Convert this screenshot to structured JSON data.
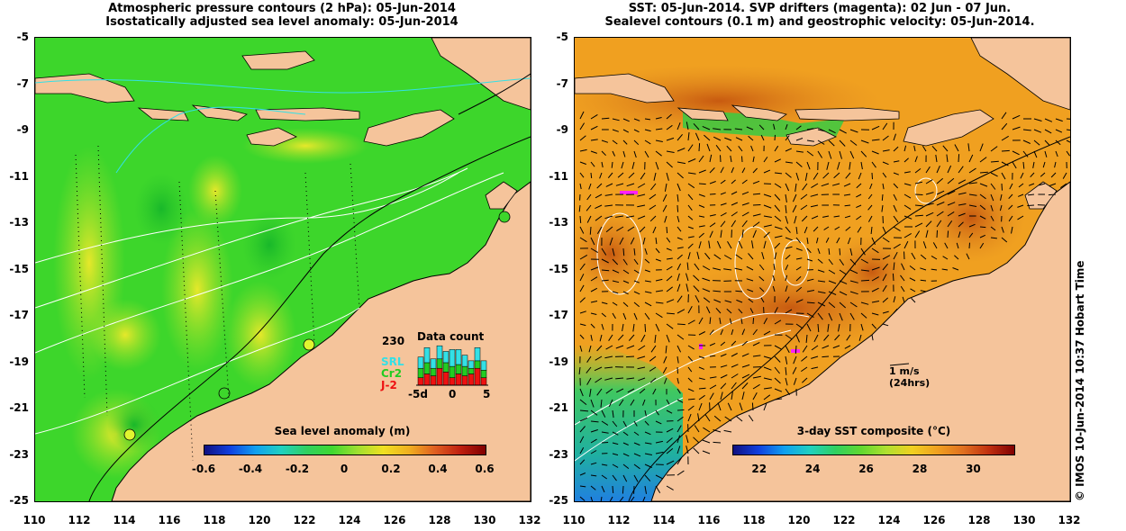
{
  "left": {
    "title_line1": "Atmospheric pressure contours (2 hPa): 05-Jun-2014",
    "title_line2": "Isostatically adjusted sea level anomaly: 05-Jun-2014",
    "colorbar": {
      "title": "Sea level anomaly (m)",
      "range": [
        -0.6,
        0.6
      ],
      "labels": [
        "-0.6",
        "-0.4",
        "-0.2",
        "0",
        "0.2",
        "0.4",
        "0.6"
      ]
    },
    "data_count": {
      "title": "Data count",
      "max_label": "230",
      "series": [
        {
          "name": "SRL",
          "color": "#33e0e6"
        },
        {
          "name": "Cr2",
          "color": "#22cc22"
        },
        {
          "name": "J-2",
          "color": "#ee1111"
        }
      ],
      "x_labels": [
        "-5d",
        "0",
        "5"
      ],
      "stacks": [
        [
          60,
          50,
          40
        ],
        [
          80,
          60,
          60
        ],
        [
          50,
          40,
          50
        ],
        [
          70,
          50,
          90
        ],
        [
          60,
          50,
          70
        ],
        [
          90,
          60,
          40
        ],
        [
          80,
          50,
          60
        ],
        [
          60,
          50,
          50
        ],
        [
          40,
          30,
          60
        ],
        [
          70,
          40,
          90
        ],
        [
          50,
          40,
          40
        ]
      ]
    }
  },
  "right": {
    "title_line1": "SST: 05-Jun-2014. SVP drifters (magenta): 02 Jun - 07 Jun.",
    "title_line2": "Sealevel contours (0.1 m) and geostrophic velocity: 05-Jun-2014.",
    "colorbar": {
      "title": "3-day SST composite (°C)",
      "range": [
        21,
        31.5
      ],
      "labels": [
        "22",
        "24",
        "26",
        "28",
        "30"
      ]
    },
    "scale": {
      "label1": "1 m/s",
      "label2": "(24hrs)"
    }
  },
  "axes": {
    "y_labels": [
      "-5",
      "-7",
      "-9",
      "-11",
      "-13",
      "-15",
      "-17",
      "-19",
      "-21",
      "-23",
      "-25"
    ],
    "x_labels": [
      "110",
      "112",
      "114",
      "116",
      "118",
      "120",
      "122",
      "124",
      "126",
      "128",
      "130",
      "132"
    ],
    "lat_range": [
      -25,
      -5
    ],
    "lon_range": [
      110,
      132
    ]
  },
  "credit": "© IMOS 10-Jun-2014 10:37 Hobart Time",
  "colors": {
    "land": "#f5c49b",
    "sla_base": "#3dd62b",
    "sst_base": "#f0a020"
  }
}
